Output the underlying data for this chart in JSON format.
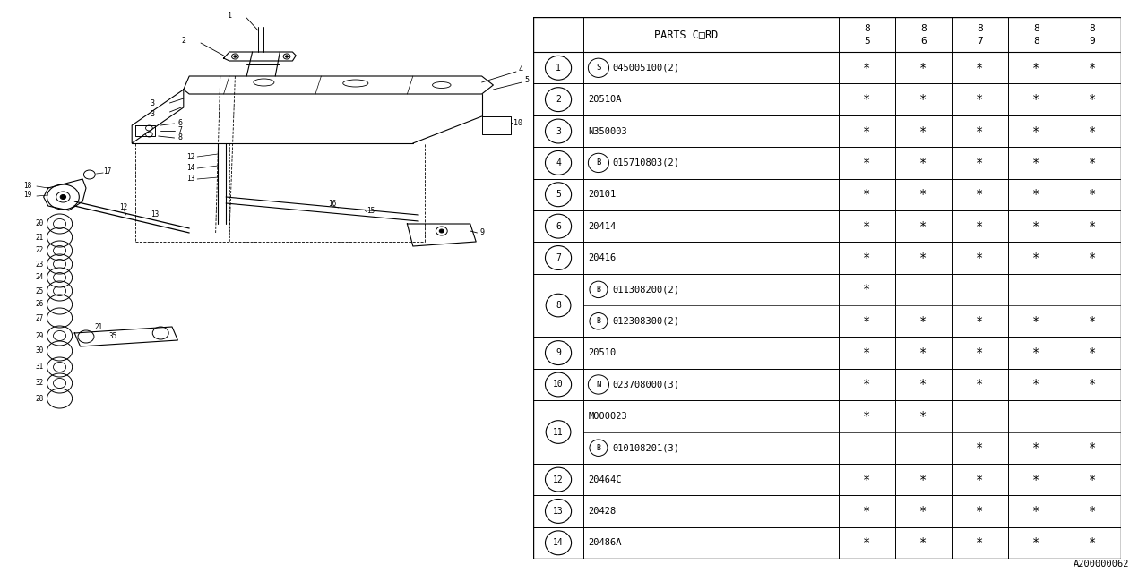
{
  "watermark": "A200000062",
  "table": {
    "rows": [
      {
        "num": "1",
        "prefix": "S",
        "code": "045005100(2)",
        "vals": [
          true,
          true,
          true,
          true,
          true
        ]
      },
      {
        "num": "2",
        "prefix": "",
        "code": "20510A",
        "vals": [
          true,
          true,
          true,
          true,
          true
        ]
      },
      {
        "num": "3",
        "prefix": "",
        "code": "N350003",
        "vals": [
          true,
          true,
          true,
          true,
          true
        ]
      },
      {
        "num": "4",
        "prefix": "B",
        "code": "015710803(2)",
        "vals": [
          true,
          true,
          true,
          true,
          true
        ]
      },
      {
        "num": "5",
        "prefix": "",
        "code": "20101",
        "vals": [
          true,
          true,
          true,
          true,
          true
        ]
      },
      {
        "num": "6",
        "prefix": "",
        "code": "20414",
        "vals": [
          true,
          true,
          true,
          true,
          true
        ]
      },
      {
        "num": "7",
        "prefix": "",
        "code": "20416",
        "vals": [
          true,
          true,
          true,
          true,
          true
        ]
      },
      {
        "num": "8",
        "prefix": "B",
        "code_top": "011308200(2)",
        "vals_top": [
          true,
          false,
          false,
          false,
          false
        ],
        "code_bot": "012308300(2)",
        "vals_bot": [
          true,
          true,
          true,
          true,
          true
        ],
        "split": true
      },
      {
        "num": "9",
        "prefix": "",
        "code": "20510",
        "vals": [
          true,
          true,
          true,
          true,
          true
        ]
      },
      {
        "num": "10",
        "prefix": "N",
        "code": "023708000(3)",
        "vals": [
          true,
          true,
          true,
          true,
          true
        ]
      },
      {
        "num": "11",
        "prefix": "",
        "code_top": "M000023",
        "vals_top": [
          true,
          true,
          false,
          false,
          false
        ],
        "prefix_bot": "B",
        "code_bot": "010108201(3)",
        "vals_bot": [
          false,
          false,
          true,
          true,
          true
        ],
        "split": true
      },
      {
        "num": "12",
        "prefix": "",
        "code": "20464C",
        "vals": [
          true,
          true,
          true,
          true,
          true
        ]
      },
      {
        "num": "13",
        "prefix": "",
        "code": "20428",
        "vals": [
          true,
          true,
          true,
          true,
          true
        ]
      },
      {
        "num": "14",
        "prefix": "",
        "code": "20486A",
        "vals": [
          true,
          true,
          true,
          true,
          true
        ]
      }
    ]
  },
  "bg_color": "#ffffff",
  "lc": "#000000"
}
